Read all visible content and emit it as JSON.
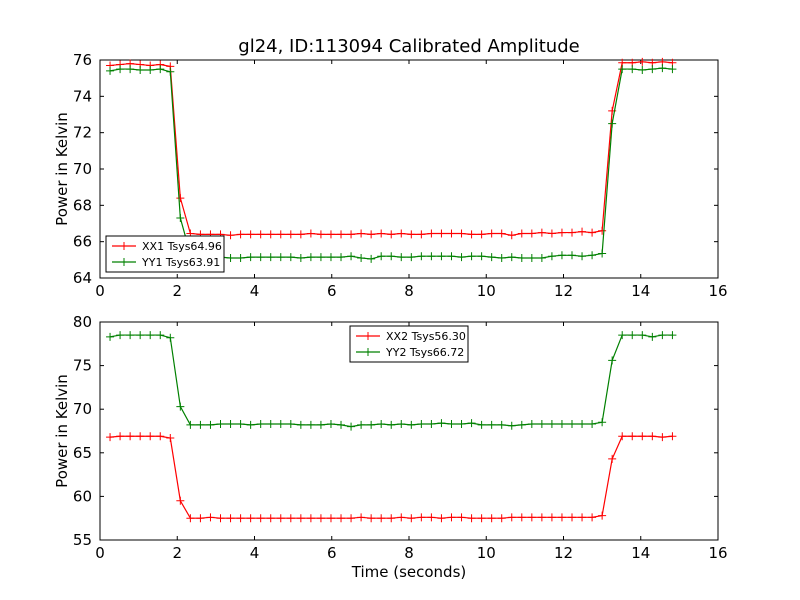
{
  "chart_data": [
    {
      "type": "line",
      "title": "gl24, ID:113094 Calibrated Amplitude",
      "xlabel": "",
      "ylabel": "Power in Kelvin",
      "xlim": [
        0,
        16
      ],
      "ylim": [
        64,
        76
      ],
      "xticks": [
        "0",
        "2",
        "4",
        "6",
        "8",
        "10",
        "12",
        "14",
        "16"
      ],
      "yticks": [
        "64",
        "66",
        "68",
        "70",
        "72",
        "74",
        "76"
      ],
      "legend_position": "lower-left",
      "grid": false,
      "x": [
        0.26,
        0.52,
        0.78,
        1.04,
        1.3,
        1.56,
        1.82,
        2.08,
        2.34,
        2.6,
        2.86,
        3.12,
        3.38,
        3.64,
        3.9,
        4.16,
        4.42,
        4.68,
        4.94,
        5.2,
        5.46,
        5.72,
        5.98,
        6.24,
        6.5,
        6.76,
        7.02,
        7.28,
        7.54,
        7.8,
        8.06,
        8.32,
        8.58,
        8.84,
        9.1,
        9.36,
        9.62,
        9.88,
        10.14,
        10.4,
        10.66,
        10.92,
        11.18,
        11.44,
        11.7,
        11.96,
        12.22,
        12.48,
        12.74,
        13.0,
        13.26,
        13.52,
        13.78,
        14.04,
        14.3,
        14.56,
        14.82
      ],
      "series": [
        {
          "name": "XX1 Tsys64.96",
          "color": "#ff0000",
          "values": [
            75.7,
            75.75,
            75.8,
            75.75,
            75.7,
            75.75,
            75.65,
            68.4,
            66.45,
            66.4,
            66.4,
            66.4,
            66.35,
            66.4,
            66.4,
            66.4,
            66.4,
            66.4,
            66.4,
            66.4,
            66.45,
            66.4,
            66.4,
            66.4,
            66.4,
            66.45,
            66.4,
            66.45,
            66.4,
            66.45,
            66.4,
            66.4,
            66.45,
            66.45,
            66.45,
            66.45,
            66.4,
            66.4,
            66.45,
            66.45,
            66.35,
            66.45,
            66.45,
            66.5,
            66.45,
            66.5,
            66.5,
            66.55,
            66.5,
            66.6,
            73.2,
            75.85,
            75.85,
            75.9,
            75.85,
            75.9,
            75.85
          ]
        },
        {
          "name": "YY1 Tsys63.91",
          "color": "#008000",
          "values": [
            75.4,
            75.5,
            75.5,
            75.45,
            75.45,
            75.5,
            75.35,
            67.3,
            65.3,
            65.2,
            65.2,
            65.15,
            65.1,
            65.1,
            65.15,
            65.15,
            65.15,
            65.15,
            65.15,
            65.1,
            65.15,
            65.15,
            65.15,
            65.15,
            65.2,
            65.1,
            65.05,
            65.2,
            65.2,
            65.15,
            65.15,
            65.2,
            65.2,
            65.2,
            65.2,
            65.15,
            65.2,
            65.2,
            65.15,
            65.1,
            65.15,
            65.1,
            65.1,
            65.1,
            65.2,
            65.25,
            65.25,
            65.2,
            65.25,
            65.35,
            72.5,
            75.5,
            75.5,
            75.45,
            75.5,
            75.55,
            75.5
          ]
        }
      ]
    },
    {
      "type": "line",
      "title": "",
      "xlabel": "Time (seconds)",
      "ylabel": "Power in Kelvin",
      "xlim": [
        0,
        16
      ],
      "ylim": [
        55,
        80
      ],
      "xticks": [
        "0",
        "2",
        "4",
        "6",
        "8",
        "10",
        "12",
        "14",
        "16"
      ],
      "yticks": [
        "55",
        "60",
        "65",
        "70",
        "75",
        "80"
      ],
      "legend_position": "top-center",
      "grid": false,
      "x": [
        0.26,
        0.52,
        0.78,
        1.04,
        1.3,
        1.56,
        1.82,
        2.08,
        2.34,
        2.6,
        2.86,
        3.12,
        3.38,
        3.64,
        3.9,
        4.16,
        4.42,
        4.68,
        4.94,
        5.2,
        5.46,
        5.72,
        5.98,
        6.24,
        6.5,
        6.76,
        7.02,
        7.28,
        7.54,
        7.8,
        8.06,
        8.32,
        8.58,
        8.84,
        9.1,
        9.36,
        9.62,
        9.88,
        10.14,
        10.4,
        10.66,
        10.92,
        11.18,
        11.44,
        11.7,
        11.96,
        12.22,
        12.48,
        12.74,
        13.0,
        13.26,
        13.52,
        13.78,
        14.04,
        14.3,
        14.56,
        14.82
      ],
      "series": [
        {
          "name": "XX2 Tsys56.30",
          "color": "#ff0000",
          "values": [
            66.8,
            66.9,
            66.9,
            66.9,
            66.9,
            66.9,
            66.7,
            59.5,
            57.5,
            57.5,
            57.6,
            57.5,
            57.5,
            57.5,
            57.5,
            57.5,
            57.5,
            57.5,
            57.5,
            57.5,
            57.5,
            57.5,
            57.5,
            57.5,
            57.5,
            57.6,
            57.5,
            57.5,
            57.5,
            57.6,
            57.5,
            57.6,
            57.6,
            57.5,
            57.6,
            57.6,
            57.5,
            57.5,
            57.5,
            57.5,
            57.6,
            57.6,
            57.6,
            57.6,
            57.6,
            57.6,
            57.6,
            57.6,
            57.6,
            57.8,
            64.3,
            66.9,
            66.9,
            66.9,
            66.9,
            66.8,
            66.9
          ]
        },
        {
          "name": "YY2 Tsys66.72",
          "color": "#008000",
          "values": [
            78.3,
            78.5,
            78.5,
            78.5,
            78.5,
            78.5,
            78.2,
            70.3,
            68.2,
            68.2,
            68.2,
            68.3,
            68.3,
            68.3,
            68.2,
            68.3,
            68.3,
            68.3,
            68.3,
            68.2,
            68.2,
            68.2,
            68.3,
            68.2,
            68.0,
            68.2,
            68.2,
            68.3,
            68.2,
            68.3,
            68.2,
            68.3,
            68.3,
            68.4,
            68.3,
            68.3,
            68.4,
            68.2,
            68.2,
            68.2,
            68.1,
            68.2,
            68.3,
            68.3,
            68.3,
            68.3,
            68.3,
            68.3,
            68.3,
            68.5,
            75.6,
            78.5,
            78.5,
            78.5,
            78.3,
            78.5,
            78.5
          ]
        }
      ]
    }
  ]
}
